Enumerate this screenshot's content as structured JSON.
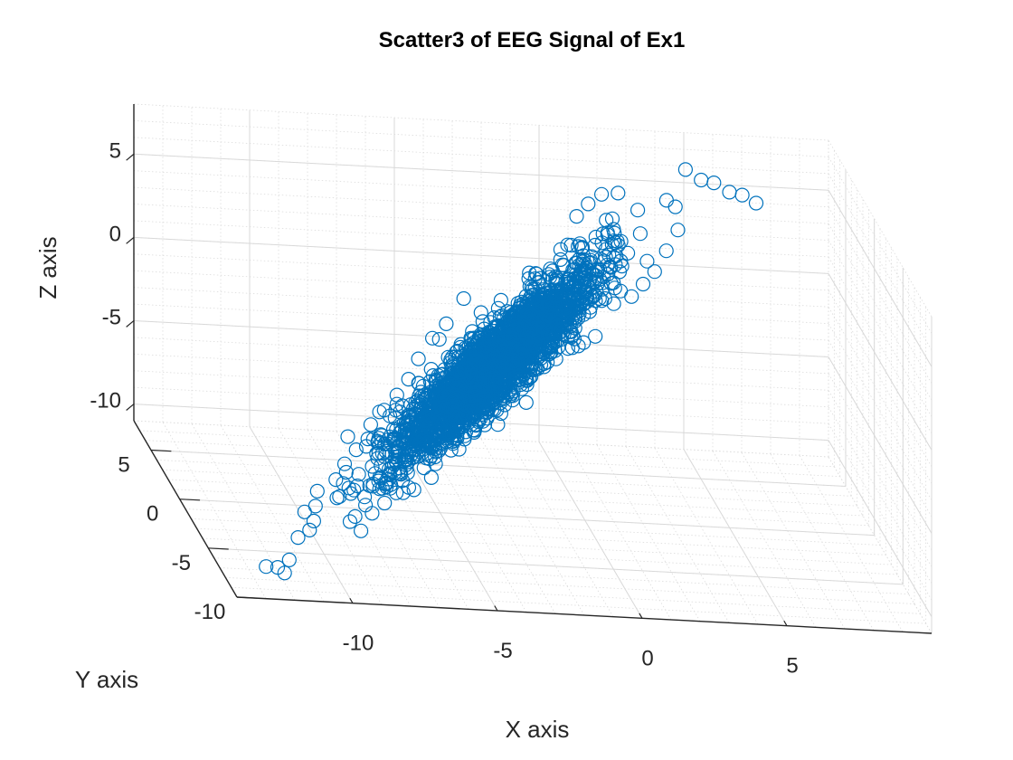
{
  "chart_data": {
    "type": "scatter",
    "title": "Scatter3 of EEG Signal of Ex1",
    "xlabel": "X axis",
    "ylabel": "Y axis",
    "zlabel": "Z axis",
    "xlim": [
      -14,
      10
    ],
    "ylim": [
      -10,
      8
    ],
    "zlim": [
      -11,
      8
    ],
    "x_ticks": [
      "-10",
      "-5",
      "0",
      "5"
    ],
    "y_ticks": [
      "-10",
      "-5",
      "0",
      "5"
    ],
    "z_ticks": [
      "-10",
      "-5",
      "0",
      "5"
    ],
    "grid": true,
    "minor_grid": true,
    "marker": "open-circle",
    "series": [
      {
        "color": "#0072BD",
        "points_description": "dense elongated cloud of EEG samples, approx. 4000 points, strongly correlated along x=y=z diagonal",
        "outliers": [
          [
            -12.5,
            -7.5,
            -10.5
          ],
          [
            -12.0,
            -7.0,
            -10.8
          ],
          [
            -11.8,
            -7.2,
            -11.0
          ],
          [
            -11.5,
            -6.5,
            -10.6
          ],
          [
            -11.0,
            -5.5,
            -9.8
          ],
          [
            -10.5,
            -5.0,
            -9.6
          ],
          [
            -10.2,
            -4.2,
            -9.5
          ],
          [
            -10.0,
            -3.5,
            -9.0
          ],
          [
            -9.8,
            -2.8,
            -8.5
          ],
          [
            -9.0,
            -2.0,
            -8.2
          ],
          [
            -8.5,
            -1.0,
            -7.8
          ],
          [
            -8.0,
            -0.5,
            -7.2
          ],
          [
            -7.5,
            0.0,
            -6.8
          ],
          [
            -7.2,
            1.0,
            -6.5
          ],
          [
            -6.8,
            1.5,
            -6.0
          ],
          [
            -6.0,
            2.5,
            -5.5
          ],
          [
            -5.5,
            3.0,
            -4.8
          ],
          [
            -5.0,
            3.8,
            -4.0
          ],
          [
            -4.2,
            4.2,
            -3.0
          ],
          [
            -3.8,
            5.0,
            -2.5
          ],
          [
            -3.0,
            6.0,
            -1.5
          ],
          [
            -2.5,
            5.5,
            -2.0
          ],
          [
            1.0,
            6.5,
            3.5
          ],
          [
            1.5,
            7.0,
            4.0
          ],
          [
            2.0,
            7.2,
            4.5
          ],
          [
            5.5,
            7.5,
            5.5
          ],
          [
            6.0,
            7.8,
            5.2
          ],
          [
            6.5,
            7.6,
            4.8
          ],
          [
            7.0,
            7.9,
            4.5
          ],
          [
            7.5,
            8.0,
            4.0
          ],
          [
            4.5,
            6.5,
            3.0
          ],
          [
            4.0,
            6.0,
            2.0
          ],
          [
            3.5,
            5.5,
            1.0
          ],
          [
            3.0,
            5.0,
            0.5
          ],
          [
            2.5,
            4.5,
            0.0
          ],
          [
            -1.5,
            2.0,
            -1.0
          ],
          [
            -2.0,
            1.5,
            -2.8
          ],
          [
            0.5,
            3.5,
            1.5
          ],
          [
            -6.5,
            -3.0,
            -8.0
          ],
          [
            -5.8,
            -2.5,
            -7.5
          ]
        ]
      }
    ]
  }
}
